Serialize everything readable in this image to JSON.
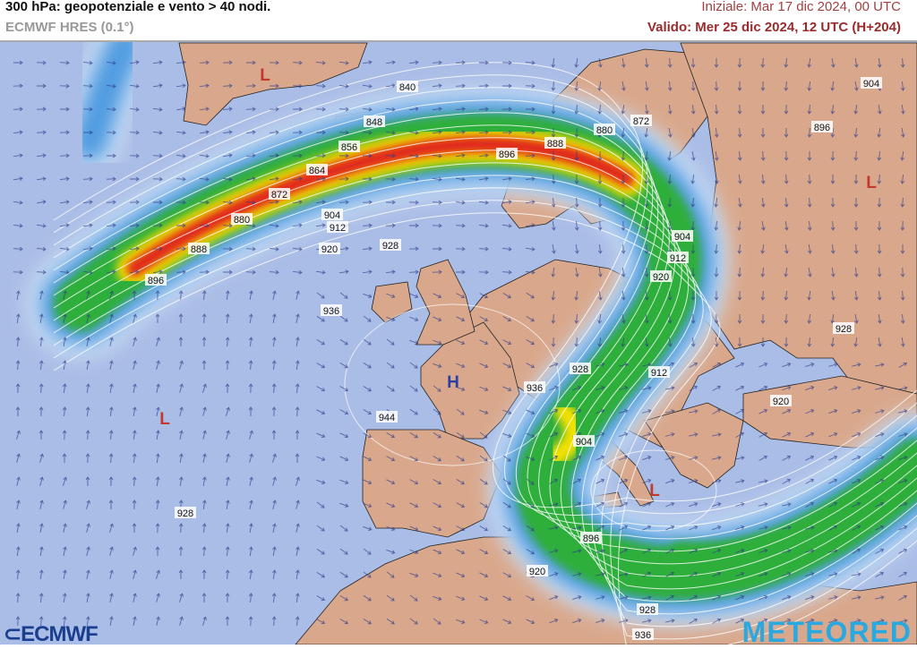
{
  "header": {
    "title": "300 hPa: geopotenziale e vento > 40 nodi.",
    "model": "ECMWF HRES (0.1°)",
    "initial": "Iniziale: Mar 17 dic 2024, 00 UTC",
    "valid": "Valido: Mer 25 dic 2024, 12 UTC (H+204)"
  },
  "map": {
    "colors": {
      "ocean": "#aabde6",
      "land": "#d9a88c",
      "jet_blue": "#4f9be0",
      "jet_green": "#2fae3a",
      "jet_yellow": "#f2e100",
      "jet_red": "#e0201c"
    },
    "contour_labels": [
      "840",
      "848",
      "856",
      "864",
      "872",
      "880",
      "888",
      "896",
      "904",
      "912",
      "920",
      "928",
      "936",
      "944",
      "928",
      "896",
      "888",
      "880",
      "872",
      "896",
      "904",
      "904",
      "912",
      "920",
      "928",
      "912",
      "920",
      "928",
      "936",
      "904",
      "896",
      "920",
      "928",
      "936"
    ],
    "pressure_centers": [
      {
        "symbol": "L",
        "color": "#c0392b"
      },
      {
        "symbol": "L",
        "color": "#c0392b"
      },
      {
        "symbol": "L",
        "color": "#c0392b"
      },
      {
        "symbol": "L",
        "color": "#c0392b"
      },
      {
        "symbol": "H",
        "color": "#2a3fa8"
      }
    ]
  },
  "logos": {
    "left": "ECMWF",
    "right": "METEORED"
  }
}
